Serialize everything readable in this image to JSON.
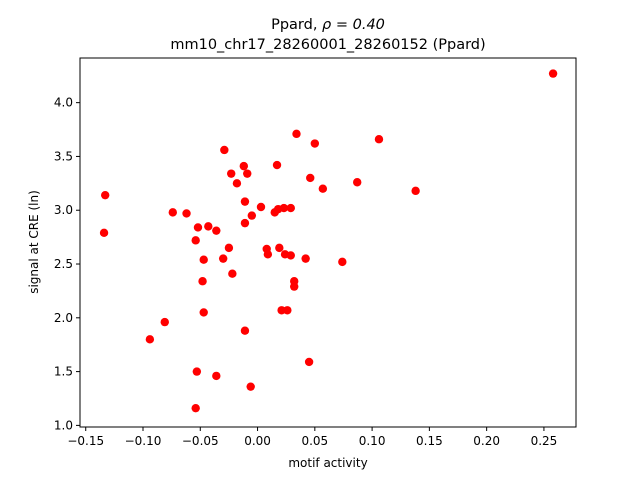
{
  "chart_data": {
    "type": "scatter",
    "title_line1_prefix": "Ppard, ",
    "title_line1_math": "ρ = 0.40",
    "title_line2": "mm10_chr17_28260001_28260152 (Ppard)",
    "xlabel": "motif activity",
    "ylabel": "signal at CRE (ln)",
    "xlim": [
      -0.155,
      0.278
    ],
    "ylim": [
      0.985,
      4.415
    ],
    "xticks": [
      -0.15,
      -0.1,
      -0.05,
      0.0,
      0.05,
      0.1,
      0.15,
      0.2,
      0.25
    ],
    "xtick_labels": [
      "−0.15",
      "−0.10",
      "−0.05",
      "0.00",
      "0.05",
      "0.10",
      "0.15",
      "0.20",
      "0.25"
    ],
    "yticks": [
      1.0,
      1.5,
      2.0,
      2.5,
      3.0,
      3.5,
      4.0
    ],
    "ytick_labels": [
      "1.0",
      "1.5",
      "2.0",
      "2.5",
      "3.0",
      "3.5",
      "4.0"
    ],
    "marker_color": "#ff0000",
    "grid": false,
    "points": [
      {
        "x": 0.258,
        "y": 4.27
      },
      {
        "x": 0.106,
        "y": 3.66
      },
      {
        "x": 0.034,
        "y": 3.71
      },
      {
        "x": 0.05,
        "y": 3.62
      },
      {
        "x": -0.029,
        "y": 3.56
      },
      {
        "x": 0.017,
        "y": 3.42
      },
      {
        "x": -0.012,
        "y": 3.41
      },
      {
        "x": -0.023,
        "y": 3.34
      },
      {
        "x": -0.009,
        "y": 3.34
      },
      {
        "x": 0.046,
        "y": 3.3
      },
      {
        "x": 0.087,
        "y": 3.26
      },
      {
        "x": -0.018,
        "y": 3.25
      },
      {
        "x": 0.057,
        "y": 3.2
      },
      {
        "x": 0.138,
        "y": 3.18
      },
      {
        "x": -0.133,
        "y": 3.14
      },
      {
        "x": -0.011,
        "y": 3.08
      },
      {
        "x": 0.003,
        "y": 3.03
      },
      {
        "x": 0.018,
        "y": 3.01
      },
      {
        "x": 0.023,
        "y": 3.02
      },
      {
        "x": 0.029,
        "y": 3.02
      },
      {
        "x": 0.015,
        "y": 2.98
      },
      {
        "x": -0.074,
        "y": 2.98
      },
      {
        "x": -0.062,
        "y": 2.97
      },
      {
        "x": -0.005,
        "y": 2.95
      },
      {
        "x": -0.011,
        "y": 2.88
      },
      {
        "x": -0.052,
        "y": 2.84
      },
      {
        "x": -0.043,
        "y": 2.85
      },
      {
        "x": -0.036,
        "y": 2.81
      },
      {
        "x": -0.134,
        "y": 2.79
      },
      {
        "x": -0.054,
        "y": 2.72
      },
      {
        "x": -0.025,
        "y": 2.65
      },
      {
        "x": 0.008,
        "y": 2.64
      },
      {
        "x": 0.019,
        "y": 2.65
      },
      {
        "x": 0.009,
        "y": 2.59
      },
      {
        "x": 0.024,
        "y": 2.59
      },
      {
        "x": 0.029,
        "y": 2.58
      },
      {
        "x": -0.047,
        "y": 2.54
      },
      {
        "x": -0.03,
        "y": 2.55
      },
      {
        "x": 0.042,
        "y": 2.55
      },
      {
        "x": 0.074,
        "y": 2.52
      },
      {
        "x": -0.022,
        "y": 2.41
      },
      {
        "x": -0.048,
        "y": 2.34
      },
      {
        "x": 0.032,
        "y": 2.34
      },
      {
        "x": 0.032,
        "y": 2.29
      },
      {
        "x": 0.021,
        "y": 2.07
      },
      {
        "x": 0.026,
        "y": 2.07
      },
      {
        "x": -0.047,
        "y": 2.05
      },
      {
        "x": -0.081,
        "y": 1.96
      },
      {
        "x": -0.011,
        "y": 1.88
      },
      {
        "x": -0.094,
        "y": 1.8
      },
      {
        "x": 0.045,
        "y": 1.59
      },
      {
        "x": -0.053,
        "y": 1.5
      },
      {
        "x": -0.036,
        "y": 1.46
      },
      {
        "x": -0.006,
        "y": 1.36
      },
      {
        "x": -0.054,
        "y": 1.16
      }
    ]
  }
}
